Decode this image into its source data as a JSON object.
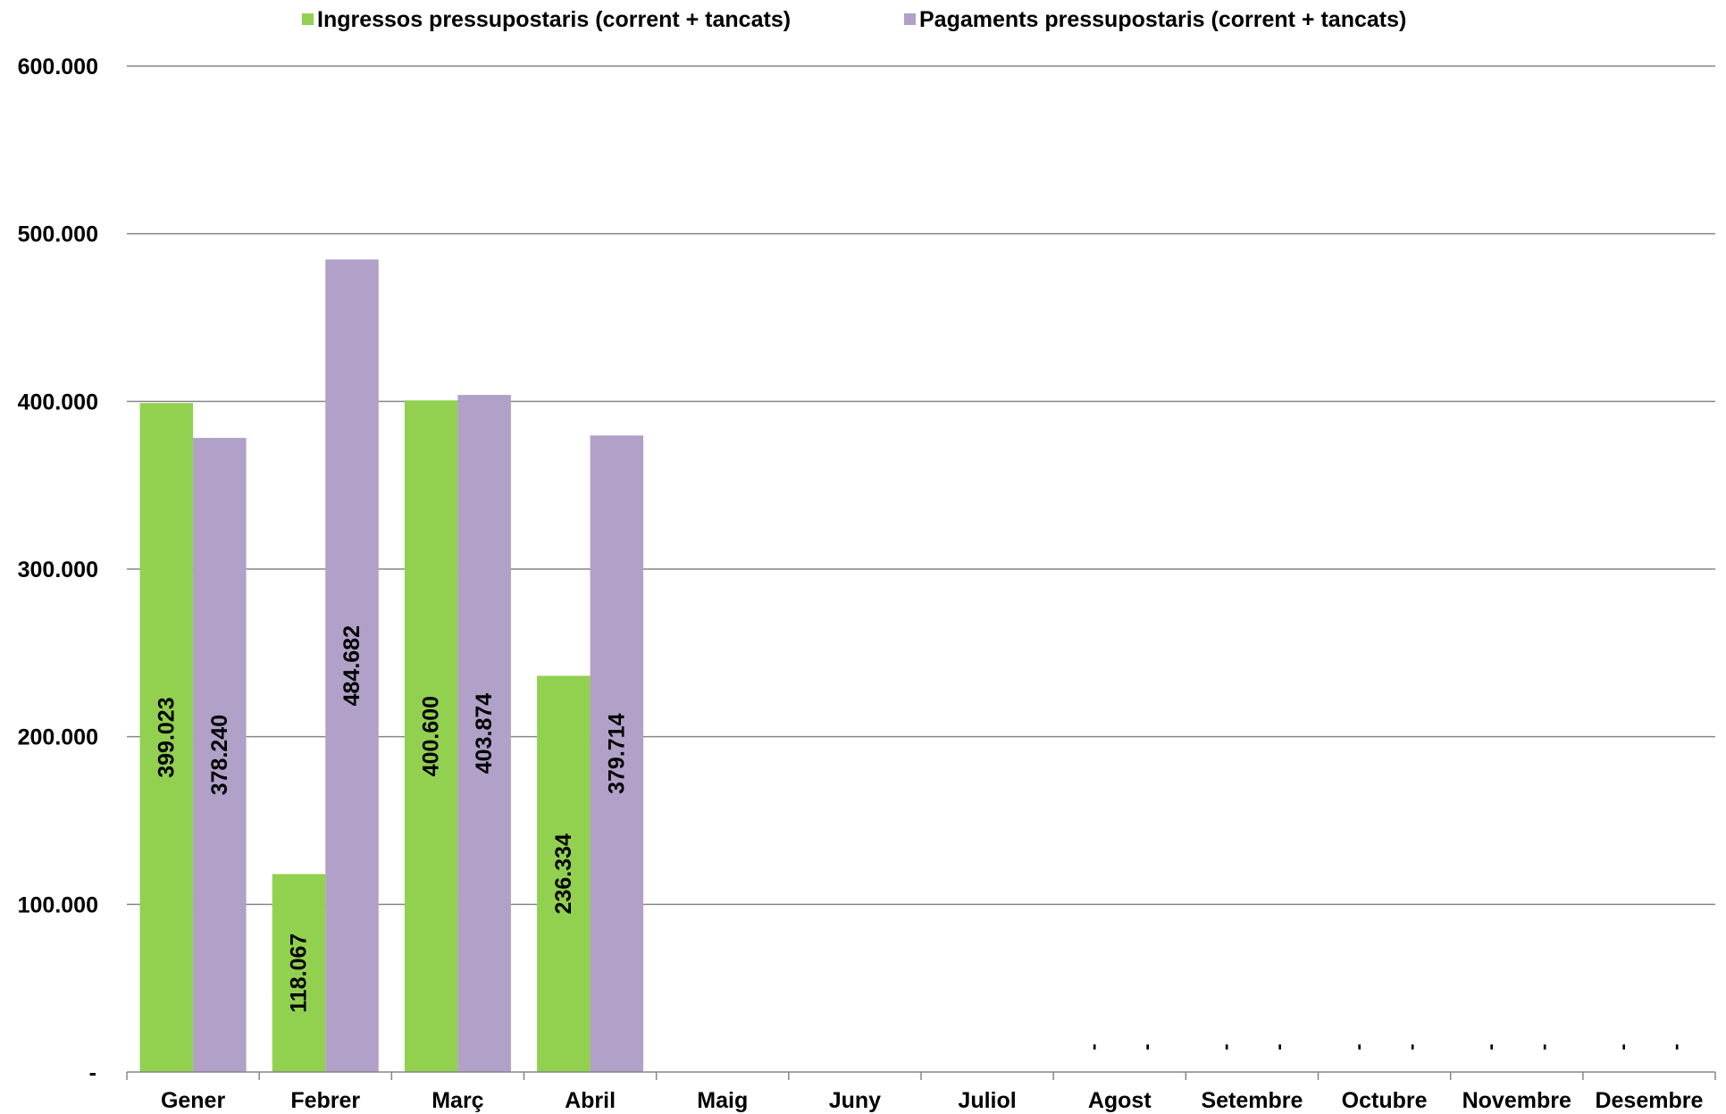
{
  "chart_data": {
    "type": "bar",
    "categories": [
      "Gener",
      "Febrer",
      "Març",
      "Abril",
      "Maig",
      "Juny",
      "Juliol",
      "Agost",
      "Setembre",
      "Octubre",
      "Novembre",
      "Desembre"
    ],
    "series": [
      {
        "name": "Ingressos pressupostaris (corrent + tancats)",
        "color": "#92d050",
        "values": [
          399023,
          118067,
          400600,
          236334,
          null,
          null,
          null,
          0,
          0,
          0,
          0,
          0
        ],
        "labels": [
          "399.023",
          "118.067",
          "400.600",
          "236.334",
          "",
          "",
          "",
          "-",
          "-",
          "-",
          "-",
          "-"
        ]
      },
      {
        "name": "Pagaments pressupostaris (corrent + tancats)",
        "color": "#b1a0c7",
        "values": [
          378240,
          484682,
          403874,
          379714,
          null,
          null,
          null,
          0,
          0,
          0,
          0,
          0
        ],
        "labels": [
          "378.240",
          "484.682",
          "403.874",
          "379.714",
          "",
          "",
          "",
          "-",
          "-",
          "-",
          "-",
          "-"
        ]
      }
    ],
    "ylim": [
      0,
      600000
    ],
    "yticks": [
      0,
      100000,
      200000,
      300000,
      400000,
      500000,
      600000
    ],
    "ytick_labels": [
      "-",
      "100.000",
      "200.000",
      "300.000",
      "400.000",
      "500.000",
      "600.000"
    ],
    "grid": true,
    "legend_position": "top"
  }
}
